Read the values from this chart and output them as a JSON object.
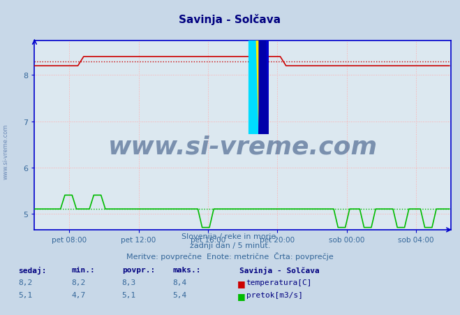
{
  "title": "Savinja - Solčava",
  "bg_color": "#c8d8e8",
  "plot_bg_color": "#dce8f0",
  "grid_color": "#ffaaaa",
  "axis_color": "#0000cc",
  "title_color": "#000080",
  "temp_color": "#cc0000",
  "flow_color": "#00bb00",
  "avg_temp_color": "#cc0000",
  "avg_flow_color": "#00bb00",
  "ylabel_color": "#336699",
  "xlabel_color": "#336699",
  "temp_avg": 8.3,
  "flow_avg": 5.1,
  "xlim": [
    0,
    288
  ],
  "ylim": [
    4.65,
    8.75
  ],
  "yticks": [
    5,
    6,
    7,
    8
  ],
  "xtick_labels": [
    "pet 08:00",
    "pet 12:00",
    "pet 16:00",
    "pet 20:00",
    "sob 00:00",
    "sob 04:00"
  ],
  "xtick_positions": [
    24,
    72,
    120,
    168,
    216,
    264
  ],
  "subtitle1": "Slovenija / reke in morje.",
  "subtitle2": "zadnji dan / 5 minut.",
  "subtitle3": "Meritve: povprečne  Enote: metrične  Črta: povprečje",
  "legend_title": "Savinja - Solčava",
  "legend_items": [
    "temperatura[C]",
    "pretok[m3/s]"
  ],
  "table_headers": [
    "sedaj:",
    "min.:",
    "povpr.:",
    "maks.:"
  ],
  "table_temp": [
    "8,2",
    "8,2",
    "8,3",
    "8,4"
  ],
  "table_flow": [
    "5,1",
    "4,7",
    "5,1",
    "5,4"
  ],
  "watermark_text": "www.si-vreme.com",
  "watermark_color": "#1a3a6e",
  "side_text": "www.si-vreme.com",
  "side_color": "#5577aa"
}
